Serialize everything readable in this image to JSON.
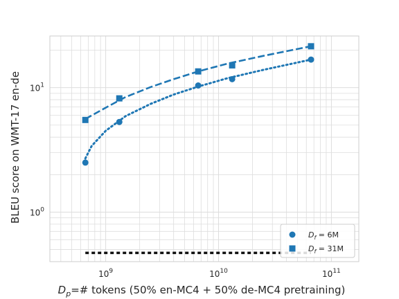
{
  "chart_data": {
    "type": "scatter",
    "title": "",
    "xlabel": {
      "var": "D",
      "sub": "p",
      "rest": "=# tokens (50% en-MC4 + 50% de-MC4 pretraining)"
    },
    "ylabel": "BLEU score on WMT-17 en-de",
    "xscale": "log",
    "yscale": "log",
    "xlim": [
      320000000.0,
      175000000000.0
    ],
    "ylim": [
      0.4,
      26
    ],
    "grid": true,
    "x_ticks": [
      {
        "value": 1000000000.0,
        "base": "10",
        "exp": "9"
      },
      {
        "value": 10000000000.0,
        "base": "10",
        "exp": "10"
      },
      {
        "value": 100000000000.0,
        "base": "10",
        "exp": "11"
      }
    ],
    "y_ticks": [
      {
        "value": 1,
        "base": "10",
        "exp": "0"
      },
      {
        "value": 10,
        "base": "10",
        "exp": "1"
      }
    ],
    "legend_position": "bottom-right",
    "color": "#1f77b4",
    "series": [
      {
        "legend": {
          "var": "D",
          "sub": "f",
          "rest": " = 6M"
        },
        "marker": "circle",
        "fit_style": "dotted",
        "x": [
          660000000.0,
          1320000000.0,
          6600000000.0,
          13200000000.0,
          66000000000.0
        ],
        "y": [
          2.5,
          5.3,
          10.4,
          11.7,
          16.8
        ],
        "fit": {
          "x": [
            660000000.0,
            750000000.0,
            1000000000.0,
            1500000000.0,
            2500000000.0,
            4000000000.0,
            6600000000.0,
            12000000000.0,
            25000000000.0,
            66000000000.0
          ],
          "y": [
            2.7,
            3.4,
            4.5,
            5.9,
            7.4,
            8.8,
            10.2,
            11.9,
            13.9,
            16.8
          ]
        }
      },
      {
        "legend": {
          "var": "D",
          "sub": "f",
          "rest": " = 31M"
        },
        "marker": "square",
        "fit_style": "dashed",
        "x": [
          660000000.0,
          1320000000.0,
          6600000000.0,
          13200000000.0,
          66000000000.0
        ],
        "y": [
          5.5,
          8.2,
          13.5,
          15.1,
          21.5
        ],
        "fit": {
          "x": [
            660000000.0,
            1000000000.0,
            1500000000.0,
            2500000000.0,
            4000000000.0,
            6600000000.0,
            12000000000.0,
            25000000000.0,
            66000000000.0
          ],
          "y": [
            5.6,
            6.9,
            8.4,
            10.1,
            11.7,
            13.5,
            15.6,
            18.0,
            21.5
          ]
        }
      },
      {
        "legend": null,
        "marker": "none",
        "fit_style": "dashed-black",
        "fit": {
          "x": [
            660000000.0,
            66000000000.0
          ],
          "y": [
            0.47,
            0.47
          ]
        }
      }
    ]
  }
}
